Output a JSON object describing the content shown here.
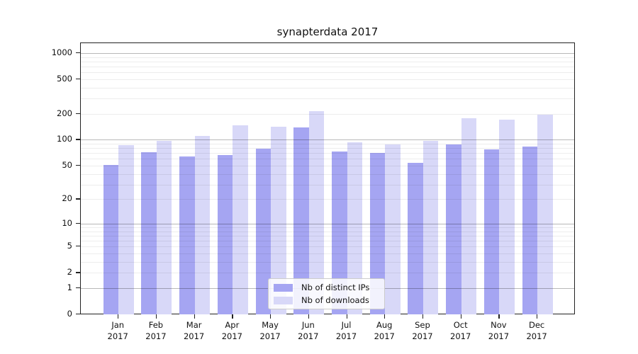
{
  "title": "synapterdata 2017",
  "chart_data": {
    "type": "bar",
    "title": "synapterdata 2017",
    "categories": [
      "Jan",
      "Feb",
      "Mar",
      "Apr",
      "May",
      "Jun",
      "Jul",
      "Aug",
      "Sep",
      "Oct",
      "Nov",
      "Dec"
    ],
    "year_label": "2017",
    "series": [
      {
        "name": "Nb of distinct IPs",
        "color": "#a5a5f2",
        "values": [
          51,
          72,
          64,
          67,
          79,
          139,
          73,
          71,
          54,
          88,
          77,
          84
        ]
      },
      {
        "name": "Nb of downloads",
        "color": "#d8d8f8",
        "values": [
          87,
          98,
          111,
          148,
          142,
          215,
          94,
          88,
          97,
          178,
          170,
          195
        ]
      }
    ],
    "xlabel": "",
    "ylabel": "",
    "y_scale": "log1p",
    "y_ticks": [
      0,
      1,
      2,
      5,
      10,
      20,
      50,
      100,
      200,
      500,
      1000
    ],
    "y_minor_gridlines": [
      2,
      3,
      4,
      5,
      6,
      7,
      8,
      9,
      20,
      30,
      40,
      50,
      60,
      70,
      80,
      90,
      200,
      300,
      400,
      500,
      600,
      700,
      800,
      900
    ],
    "y_major_gridlines": [
      1,
      10,
      100,
      1000
    ],
    "ylim": [
      0,
      1290
    ],
    "grid": "on",
    "legend_position": "lower-center"
  }
}
